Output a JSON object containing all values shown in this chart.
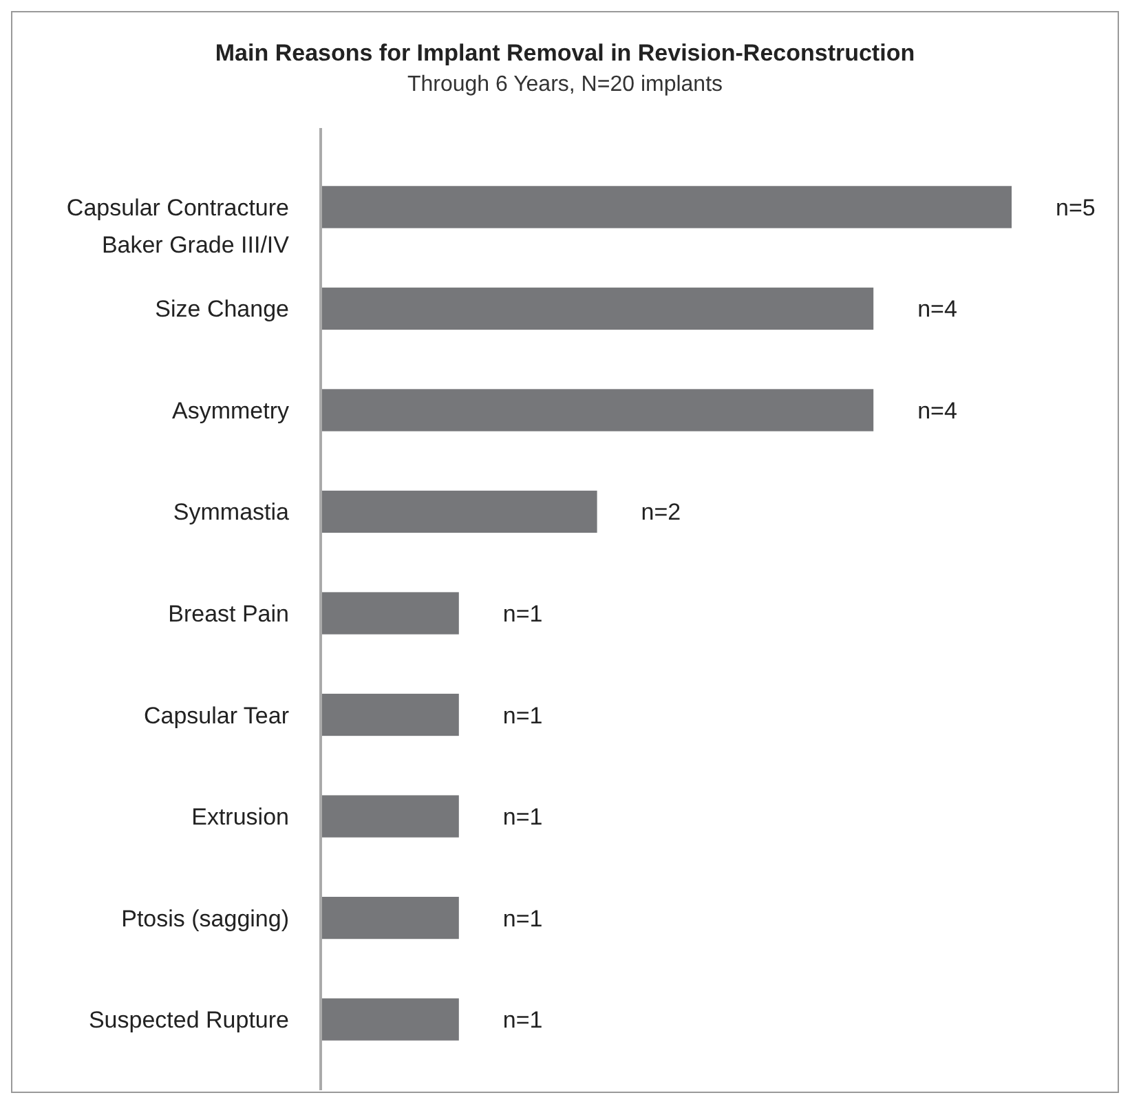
{
  "chart_data": {
    "type": "bar",
    "orientation": "horizontal",
    "title": "Main Reasons for Implant Removal in Revision-Reconstruction",
    "subtitle": "Through 6 Years, N=20 implants",
    "categories": [
      "Capsular Contracture\nBaker Grade III/IV",
      "Size Change",
      "Asymmetry",
      "Symmastia",
      "Breast Pain",
      "Capsular Tear",
      "Extrusion",
      "Ptosis (sagging)",
      "Suspected Rupture"
    ],
    "values": [
      5,
      4,
      4,
      2,
      1,
      1,
      1,
      1,
      1
    ],
    "value_labels": [
      "n=5",
      "n=4",
      "n=4",
      "n=2",
      "n=1",
      "n=1",
      "n=1",
      "n=1",
      "n=1"
    ],
    "color": "#76777a",
    "grid": false
  }
}
